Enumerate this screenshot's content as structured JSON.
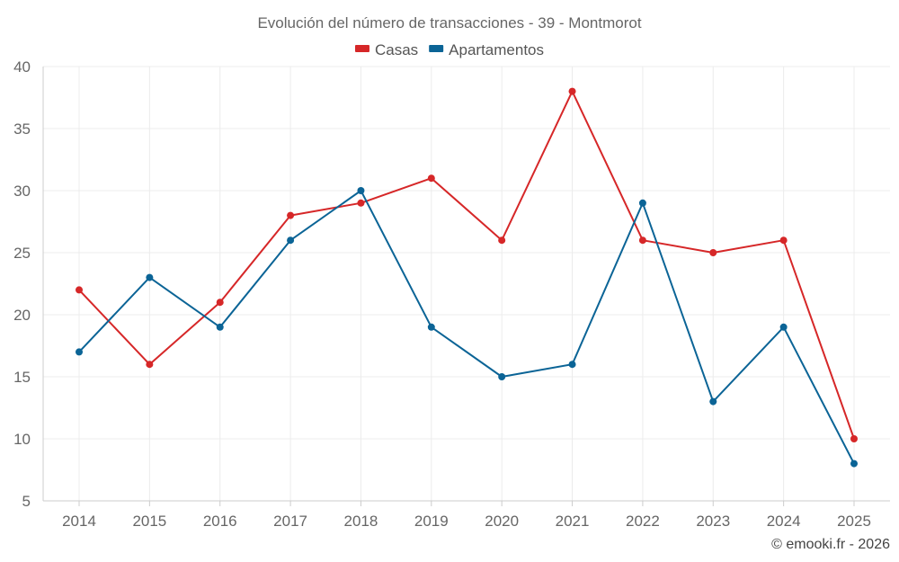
{
  "chart_data": {
    "type": "line",
    "title": "Evolución del número de transacciones - 39 - Montmorot",
    "categories": [
      "2014",
      "2015",
      "2016",
      "2017",
      "2018",
      "2019",
      "2020",
      "2021",
      "2022",
      "2023",
      "2024",
      "2025"
    ],
    "series": [
      {
        "name": "Casas",
        "color": "#d62728",
        "values": [
          22,
          16,
          21,
          28,
          29,
          31,
          26,
          38,
          26,
          25,
          26,
          10
        ]
      },
      {
        "name": "Apartamentos",
        "color": "#0b6496",
        "values": [
          17,
          23,
          19,
          26,
          30,
          19,
          15,
          16,
          29,
          13,
          19,
          8
        ]
      }
    ],
    "ylim": [
      5,
      40
    ],
    "yticks": [
      5,
      10,
      15,
      20,
      25,
      30,
      35,
      40
    ],
    "xlabel": "",
    "ylabel": "",
    "grid": true,
    "legend": "top-center"
  },
  "credit": "© emooki.fr - 2026"
}
